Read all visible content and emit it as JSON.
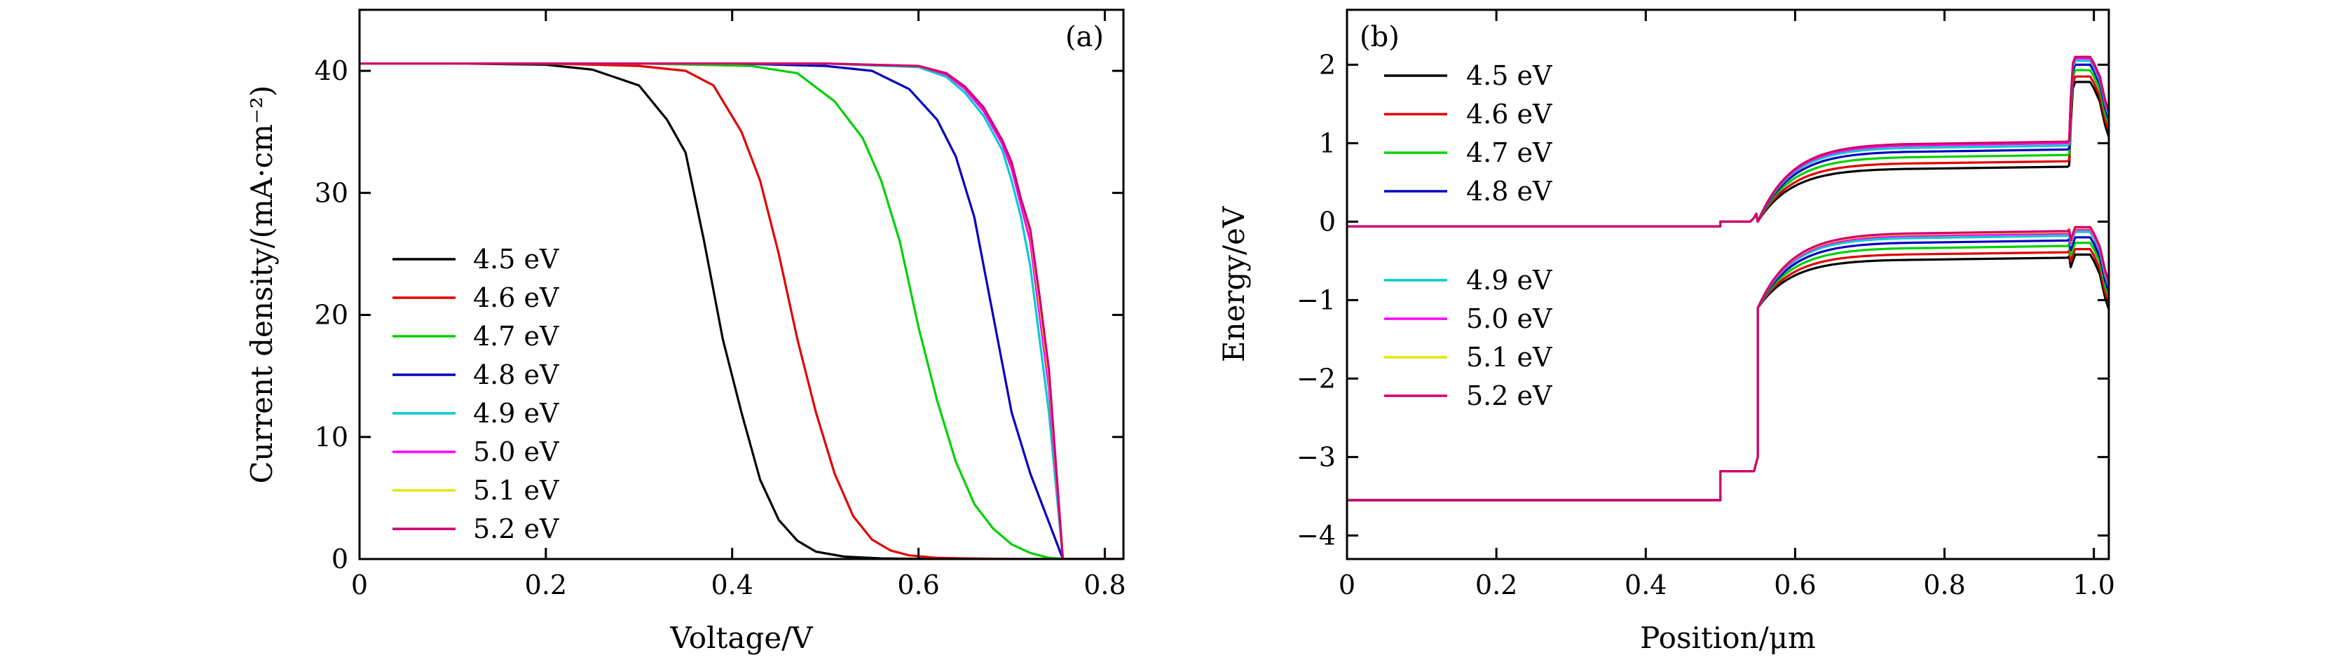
{
  "chart_data": [
    {
      "type": "line",
      "panel": "(a)",
      "xlabel": "Voltage/V",
      "ylabel": "Current density/(mA·cm⁻²)",
      "xlim": [
        0,
        0.82
      ],
      "ylim": [
        0,
        45
      ],
      "xticks": [
        0,
        0.2,
        0.4,
        0.6,
        0.8
      ],
      "xtick_labels": [
        "0",
        "0.2",
        "0.4",
        "0.6",
        "0.8"
      ],
      "yticks": [
        0,
        10,
        20,
        30,
        40
      ],
      "ytick_labels": [
        "0",
        "10",
        "20",
        "30",
        "40"
      ],
      "legend_position": "lower-left",
      "series": [
        {
          "name": "4.5 eV",
          "color": "#000000",
          "x": [
            0,
            0.1,
            0.2,
            0.25,
            0.3,
            0.33,
            0.35,
            0.37,
            0.39,
            0.41,
            0.43,
            0.45,
            0.47,
            0.49,
            0.52,
            0.56,
            0.6,
            0.65,
            0.7,
            0.76,
            0.82
          ],
          "y": [
            40.6,
            40.6,
            40.5,
            40.1,
            38.8,
            36.0,
            33.3,
            26.0,
            18.0,
            12.0,
            6.5,
            3.2,
            1.5,
            0.6,
            0.2,
            0.05,
            0.02,
            0.01,
            0,
            0,
            0
          ]
        },
        {
          "name": "4.6 eV",
          "color": "#e00000",
          "x": [
            0,
            0.2,
            0.3,
            0.35,
            0.38,
            0.41,
            0.43,
            0.45,
            0.47,
            0.49,
            0.51,
            0.53,
            0.55,
            0.57,
            0.59,
            0.62,
            0.65,
            0.7,
            0.76,
            0.82
          ],
          "y": [
            40.6,
            40.6,
            40.4,
            40.0,
            38.8,
            35.0,
            31.0,
            25.0,
            18.0,
            12.0,
            7.0,
            3.5,
            1.6,
            0.7,
            0.3,
            0.1,
            0.05,
            0,
            0,
            0
          ]
        },
        {
          "name": "4.7 eV",
          "color": "#00d000",
          "x": [
            0,
            0.3,
            0.42,
            0.47,
            0.51,
            0.54,
            0.56,
            0.58,
            0.6,
            0.62,
            0.64,
            0.66,
            0.68,
            0.7,
            0.72,
            0.74,
            0.76,
            0.82
          ],
          "y": [
            40.6,
            40.6,
            40.4,
            39.8,
            37.5,
            34.5,
            31.0,
            26.0,
            19.0,
            13.0,
            8.0,
            4.5,
            2.5,
            1.2,
            0.5,
            0.1,
            0,
            0
          ]
        },
        {
          "name": "4.8 eV",
          "color": "#0000c0",
          "x": [
            0,
            0.4,
            0.5,
            0.55,
            0.59,
            0.62,
            0.64,
            0.66,
            0.68,
            0.7,
            0.72,
            0.74,
            0.755,
            0.82
          ],
          "y": [
            40.6,
            40.6,
            40.4,
            40.0,
            38.5,
            36.0,
            33.0,
            28.0,
            20.0,
            12.0,
            7.0,
            3.0,
            0,
            0
          ]
        },
        {
          "name": "4.9 eV",
          "color": "#00cccc",
          "x": [
            0,
            0.5,
            0.6,
            0.63,
            0.65,
            0.67,
            0.69,
            0.7,
            0.71,
            0.72,
            0.73,
            0.74,
            0.755,
            0.82
          ],
          "y": [
            40.6,
            40.6,
            40.3,
            39.5,
            38.2,
            36.3,
            33.5,
            31.0,
            28.0,
            24.0,
            18.0,
            12.0,
            0,
            0
          ]
        },
        {
          "name": "5.0 eV",
          "color": "#ff00ff",
          "x": [
            0,
            0.5,
            0.6,
            0.63,
            0.65,
            0.67,
            0.69,
            0.7,
            0.71,
            0.72,
            0.73,
            0.74,
            0.755,
            0.82
          ],
          "y": [
            40.6,
            40.6,
            40.4,
            39.7,
            38.5,
            36.7,
            34.0,
            32.0,
            29.0,
            26.0,
            20.0,
            14.0,
            0,
            0
          ]
        },
        {
          "name": "5.1 eV",
          "color": "#e6e600",
          "x": [
            0,
            0.5,
            0.6,
            0.63,
            0.65,
            0.67,
            0.69,
            0.7,
            0.71,
            0.72,
            0.73,
            0.74,
            0.755,
            0.82
          ],
          "y": [
            40.6,
            40.6,
            40.4,
            39.8,
            38.7,
            37.0,
            34.3,
            32.5,
            29.5,
            26.8,
            21.0,
            15.0,
            0,
            0
          ]
        },
        {
          "name": "5.2 eV",
          "color": "#d0006f",
          "x": [
            0,
            0.5,
            0.6,
            0.63,
            0.65,
            0.67,
            0.69,
            0.7,
            0.71,
            0.72,
            0.73,
            0.74,
            0.755,
            0.82
          ],
          "y": [
            40.6,
            40.6,
            40.4,
            39.8,
            38.7,
            37.0,
            34.3,
            32.5,
            29.5,
            27.0,
            21.5,
            15.5,
            0,
            0
          ]
        }
      ]
    },
    {
      "type": "line",
      "panel": "(b)",
      "xlabel": "Position/μm",
      "ylabel": "Energy/eV",
      "xlim": [
        0,
        1.02
      ],
      "ylim": [
        -4.3,
        2.7
      ],
      "xticks": [
        0,
        0.2,
        0.4,
        0.6,
        0.8,
        1.0
      ],
      "xtick_labels": [
        "0",
        "0.2",
        "0.4",
        "0.6",
        "0.8",
        "1.0"
      ],
      "yticks": [
        -4,
        -3,
        -2,
        -1,
        0,
        1,
        2
      ],
      "ytick_labels": [
        "−4",
        "−3",
        "−2",
        "−1",
        "0",
        "1",
        "2"
      ],
      "legend_position": "upper-left and middle-left",
      "conduction_band_common": {
        "x": [
          0,
          0.5,
          0.5,
          0.54,
          0.545,
          0.548,
          0.55
        ],
        "y": [
          -0.06,
          -0.06,
          0.0,
          0.0,
          0.05,
          0.1,
          0.0
        ]
      },
      "valence_band_common": {
        "x": [
          0,
          0.5,
          0.5,
          0.545,
          0.55,
          0.55
        ],
        "y": [
          -3.55,
          -3.55,
          -3.18,
          -3.18,
          -3.0,
          -1.1
        ]
      },
      "series": [
        {
          "name": "4.5 eV",
          "color": "#000000",
          "cb_plateau": 0.68,
          "cb_spike": 1.78,
          "vb_plateau": -0.48,
          "vb_spike": -0.42
        },
        {
          "name": "4.6 eV",
          "color": "#e00000",
          "cb_plateau": 0.75,
          "cb_spike": 1.85,
          "vb_plateau": -0.41,
          "vb_spike": -0.35
        },
        {
          "name": "4.7 eV",
          "color": "#00d000",
          "cb_plateau": 0.83,
          "cb_spike": 1.93,
          "vb_plateau": -0.33,
          "vb_spike": -0.27
        },
        {
          "name": "4.8 eV",
          "color": "#0000c0",
          "cb_plateau": 0.9,
          "cb_spike": 2.0,
          "vb_plateau": -0.26,
          "vb_spike": -0.2
        },
        {
          "name": "4.9 eV",
          "color": "#00cccc",
          "cb_plateau": 0.95,
          "cb_spike": 2.05,
          "vb_plateau": -0.2,
          "vb_spike": -0.13
        },
        {
          "name": "5.0 eV",
          "color": "#ff00ff",
          "cb_plateau": 0.98,
          "cb_spike": 2.08,
          "vb_plateau": -0.17,
          "vb_spike": -0.1
        },
        {
          "name": "5.1 eV",
          "color": "#e6e600",
          "cb_plateau": 1.0,
          "cb_spike": 2.1,
          "vb_plateau": -0.15,
          "vb_spike": -0.08
        },
        {
          "name": "5.2 eV",
          "color": "#d0006f",
          "cb_plateau": 1.0,
          "cb_spike": 2.1,
          "vb_plateau": -0.14,
          "vb_spike": -0.07
        }
      ]
    }
  ]
}
